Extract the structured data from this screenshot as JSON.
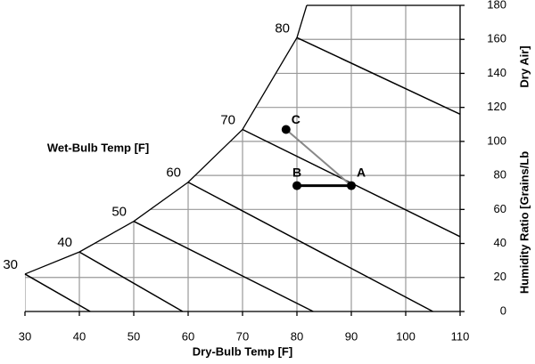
{
  "chart_data": {
    "type": "psychrometric",
    "wet_bulb_title": "Wet-Bulb Temp [F]",
    "xlabel": "Dry-Bulb Temp [F]",
    "ylabel": [
      "Humidity Ratio [Grains/Lb",
      "Dry Air]"
    ],
    "xlim": [
      30,
      110
    ],
    "ylim": [
      0,
      180
    ],
    "xticks": [
      30,
      40,
      50,
      60,
      70,
      80,
      90,
      100,
      110
    ],
    "yticks": [
      0,
      20,
      40,
      60,
      80,
      100,
      120,
      140,
      160,
      180
    ],
    "grid": true,
    "saturation": {
      "x": [
        30,
        40,
        50,
        60,
        70,
        80,
        81.8
      ],
      "y": [
        22,
        35,
        53,
        76,
        107,
        161,
        180
      ]
    },
    "wet_bulb_lines": [
      {
        "label": 30,
        "x": [
          30,
          42
        ],
        "y": [
          22,
          0
        ]
      },
      {
        "label": 40,
        "x": [
          40,
          59
        ],
        "y": [
          35,
          0
        ]
      },
      {
        "label": 50,
        "x": [
          50,
          83
        ],
        "y": [
          53,
          0
        ]
      },
      {
        "label": 60,
        "x": [
          60,
          105
        ],
        "y": [
          76,
          0
        ]
      },
      {
        "label": 70,
        "x": [
          70,
          110
        ],
        "y": [
          107,
          44
        ]
      },
      {
        "label": 80,
        "x": [
          80,
          110
        ],
        "y": [
          161,
          116
        ]
      }
    ],
    "points": [
      {
        "label": "A",
        "x": 90,
        "y": 74
      },
      {
        "label": "B",
        "x": 80,
        "y": 74
      },
      {
        "label": "C",
        "x": 78,
        "y": 107
      }
    ]
  }
}
